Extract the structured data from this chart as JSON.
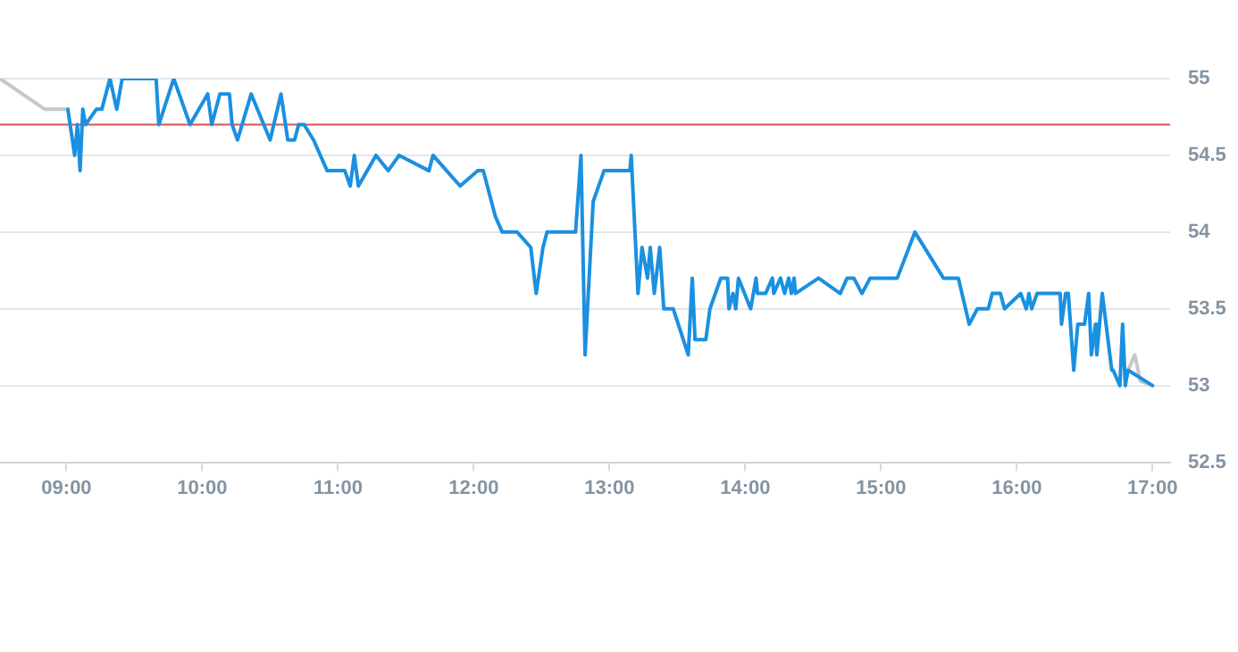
{
  "chart_data": {
    "type": "line",
    "xlim": [
      8.51,
      17.13
    ],
    "ylim": [
      52.5,
      55
    ],
    "xticks": [
      {
        "value": 9,
        "label": "09:00"
      },
      {
        "value": 10,
        "label": "10:00"
      },
      {
        "value": 11,
        "label": "11:00"
      },
      {
        "value": 12,
        "label": "12:00"
      },
      {
        "value": 13,
        "label": "13:00"
      },
      {
        "value": 14,
        "label": "14:00"
      },
      {
        "value": 15,
        "label": "15:00"
      },
      {
        "value": 16,
        "label": "16:00"
      },
      {
        "value": 17,
        "label": "17:00"
      }
    ],
    "yticks": [
      52.5,
      53,
      53.5,
      54,
      54.5,
      55
    ],
    "grid": "y",
    "legend": false,
    "marker": "none",
    "line_style": "solid",
    "ref_lines": [
      {
        "axis": "y",
        "value": 54.7,
        "color": "#d9534f"
      }
    ],
    "series": [
      {
        "color": "#c4c8cc",
        "x": [
          8.51,
          8.84,
          9.01,
          null,
          16.82,
          16.87,
          16.91,
          17.0
        ],
        "values": [
          55,
          54.8,
          54.8,
          null,
          53.1,
          53.2,
          53.03,
          53.0
        ]
      },
      {
        "color": "#1a90e0",
        "x": [
          9.01,
          9.06,
          9.08,
          9.1,
          9.12,
          9.14,
          9.22,
          9.26,
          9.32,
          9.37,
          9.41,
          9.66,
          9.68,
          9.79,
          9.91,
          10.04,
          10.07,
          10.13,
          10.2,
          10.22,
          10.26,
          10.36,
          10.5,
          10.58,
          10.63,
          10.68,
          10.71,
          10.75,
          10.82,
          10.92,
          11.05,
          11.09,
          11.12,
          11.15,
          11.28,
          11.37,
          11.45,
          11.67,
          11.7,
          11.8,
          11.9,
          12.03,
          12.07,
          12.16,
          12.21,
          12.32,
          12.42,
          12.46,
          12.51,
          12.54,
          12.75,
          12.79,
          12.82,
          12.88,
          12.96,
          13.15,
          13.16,
          13.21,
          13.24,
          13.28,
          13.3,
          13.33,
          13.37,
          13.4,
          13.47,
          13.58,
          13.61,
          13.63,
          13.71,
          13.74,
          13.82,
          13.87,
          13.88,
          13.91,
          13.93,
          13.95,
          14.04,
          14.08,
          14.09,
          14.15,
          14.2,
          14.21,
          14.26,
          14.29,
          14.32,
          14.34,
          14.36,
          14.37,
          14.54,
          14.7,
          14.75,
          14.8,
          14.86,
          14.92,
          15.12,
          15.25,
          15.46,
          15.57,
          15.65,
          15.71,
          15.79,
          15.82,
          15.88,
          15.91,
          16.03,
          16.07,
          16.09,
          16.11,
          16.15,
          16.32,
          16.33,
          16.36,
          16.38,
          16.42,
          16.45,
          16.5,
          16.53,
          16.55,
          16.58,
          16.59,
          16.63,
          16.7,
          16.71,
          16.76,
          16.78,
          16.8,
          16.82,
          17.0
        ],
        "values": [
          54.8,
          54.5,
          54.7,
          54.4,
          54.8,
          54.7,
          54.8,
          54.8,
          55,
          54.8,
          55,
          55,
          54.7,
          55,
          54.7,
          54.9,
          54.7,
          54.9,
          54.9,
          54.7,
          54.6,
          54.9,
          54.6,
          54.9,
          54.6,
          54.6,
          54.7,
          54.7,
          54.6,
          54.4,
          54.4,
          54.3,
          54.5,
          54.3,
          54.5,
          54.4,
          54.5,
          54.4,
          54.5,
          54.4,
          54.3,
          54.4,
          54.4,
          54.1,
          54.0,
          54.0,
          53.9,
          53.6,
          53.9,
          54.0,
          54.0,
          54.5,
          53.2,
          54.2,
          54.4,
          54.4,
          54.5,
          53.6,
          53.9,
          53.7,
          53.9,
          53.6,
          53.9,
          53.5,
          53.5,
          53.2,
          53.7,
          53.3,
          53.3,
          53.5,
          53.7,
          53.7,
          53.5,
          53.6,
          53.5,
          53.7,
          53.5,
          53.7,
          53.6,
          53.6,
          53.7,
          53.6,
          53.7,
          53.6,
          53.7,
          53.6,
          53.7,
          53.6,
          53.7,
          53.6,
          53.7,
          53.7,
          53.6,
          53.7,
          53.7,
          54.0,
          53.7,
          53.7,
          53.4,
          53.5,
          53.5,
          53.6,
          53.6,
          53.5,
          53.6,
          53.5,
          53.6,
          53.5,
          53.6,
          53.6,
          53.4,
          53.6,
          53.6,
          53.1,
          53.4,
          53.4,
          53.6,
          53.2,
          53.4,
          53.2,
          53.6,
          53.1,
          53.1,
          53.0,
          53.4,
          53.0,
          53.1,
          53.0
        ]
      }
    ]
  }
}
